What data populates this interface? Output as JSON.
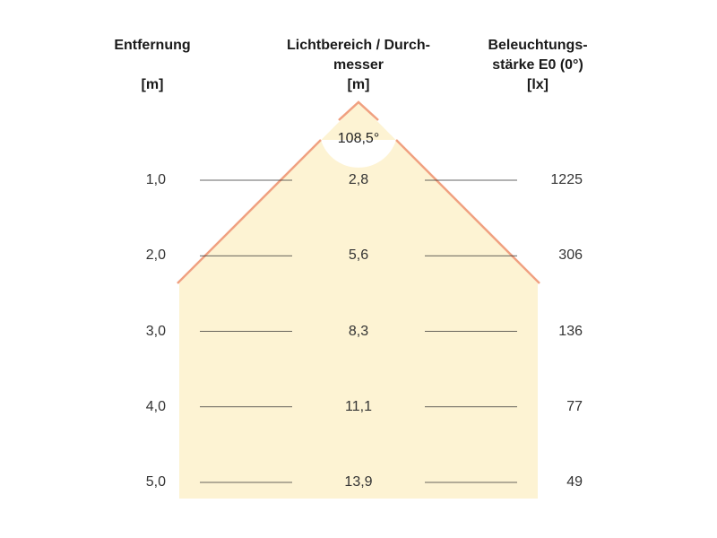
{
  "headers": {
    "distance": {
      "line1": "Entfernung",
      "unit": "[m]"
    },
    "diameter": {
      "line1": "Lichtbereich / Durch-",
      "line2": "messer",
      "unit": "[m]"
    },
    "illuminance": {
      "line1": "Beleuchtungs-",
      "line2": "stärke E0 (0°)",
      "unit": "[lx]"
    }
  },
  "beam_angle": "108,5°",
  "colors": {
    "beam_fill": "#fdf3d3",
    "beam_edge": "#f0a080",
    "guide_line": "#333333"
  },
  "rows": [
    {
      "distance": "1,0",
      "diameter": "2,8",
      "illuminance": "1225"
    },
    {
      "distance": "2,0",
      "diameter": "5,6",
      "illuminance": "306"
    },
    {
      "distance": "3,0",
      "diameter": "8,3",
      "illuminance": "136"
    },
    {
      "distance": "4,0",
      "diameter": "11,1",
      "illuminance": "77"
    },
    {
      "distance": "5,0",
      "diameter": "13,9",
      "illuminance": "49"
    }
  ]
}
